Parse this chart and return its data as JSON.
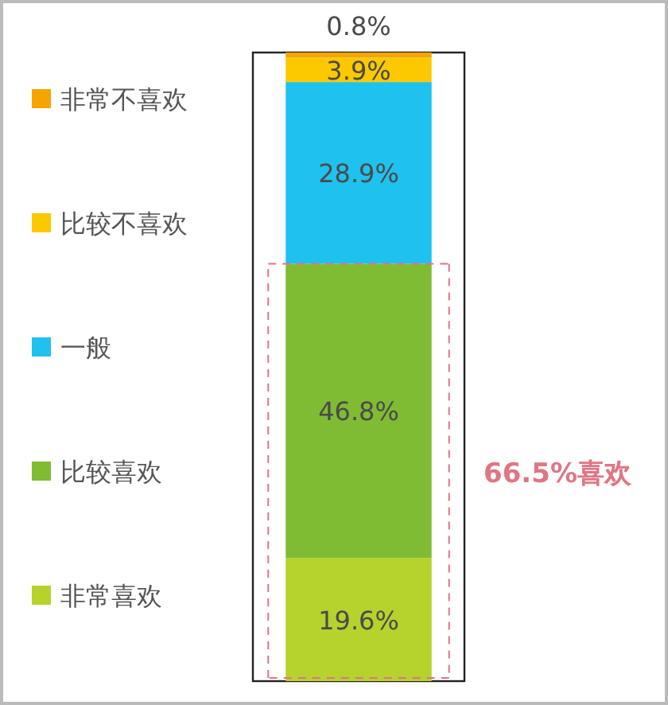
{
  "chart_data": {
    "type": "bar",
    "stacked": true,
    "categories": [
      null
    ],
    "legend": "left",
    "series": [
      {
        "name": "非常喜欢",
        "color": "#b6d22c",
        "values": [
          19.6
        ],
        "value_labels": [
          "19.6%"
        ]
      },
      {
        "name": "比较喜欢",
        "color": "#7fbc33",
        "values": [
          46.8
        ],
        "value_labels": [
          "46.8%"
        ]
      },
      {
        "name": "一般",
        "color": "#1fc1ee",
        "values": [
          28.9
        ],
        "value_labels": [
          "28.9%"
        ]
      },
      {
        "name": "比较不喜欢",
        "color": "#fcc800",
        "values": [
          3.9
        ],
        "value_labels": [
          "3.9%"
        ]
      },
      {
        "name": "非常不喜欢",
        "color": "#f5a400",
        "values": [
          0.8
        ],
        "value_labels": [
          "0.8%"
        ]
      }
    ],
    "ref_lines": [
      {
        "axis": "y",
        "value": 66.4,
        "label": "66.5%喜欢",
        "color": "#e07584",
        "line_style": "dashed"
      }
    ]
  }
}
